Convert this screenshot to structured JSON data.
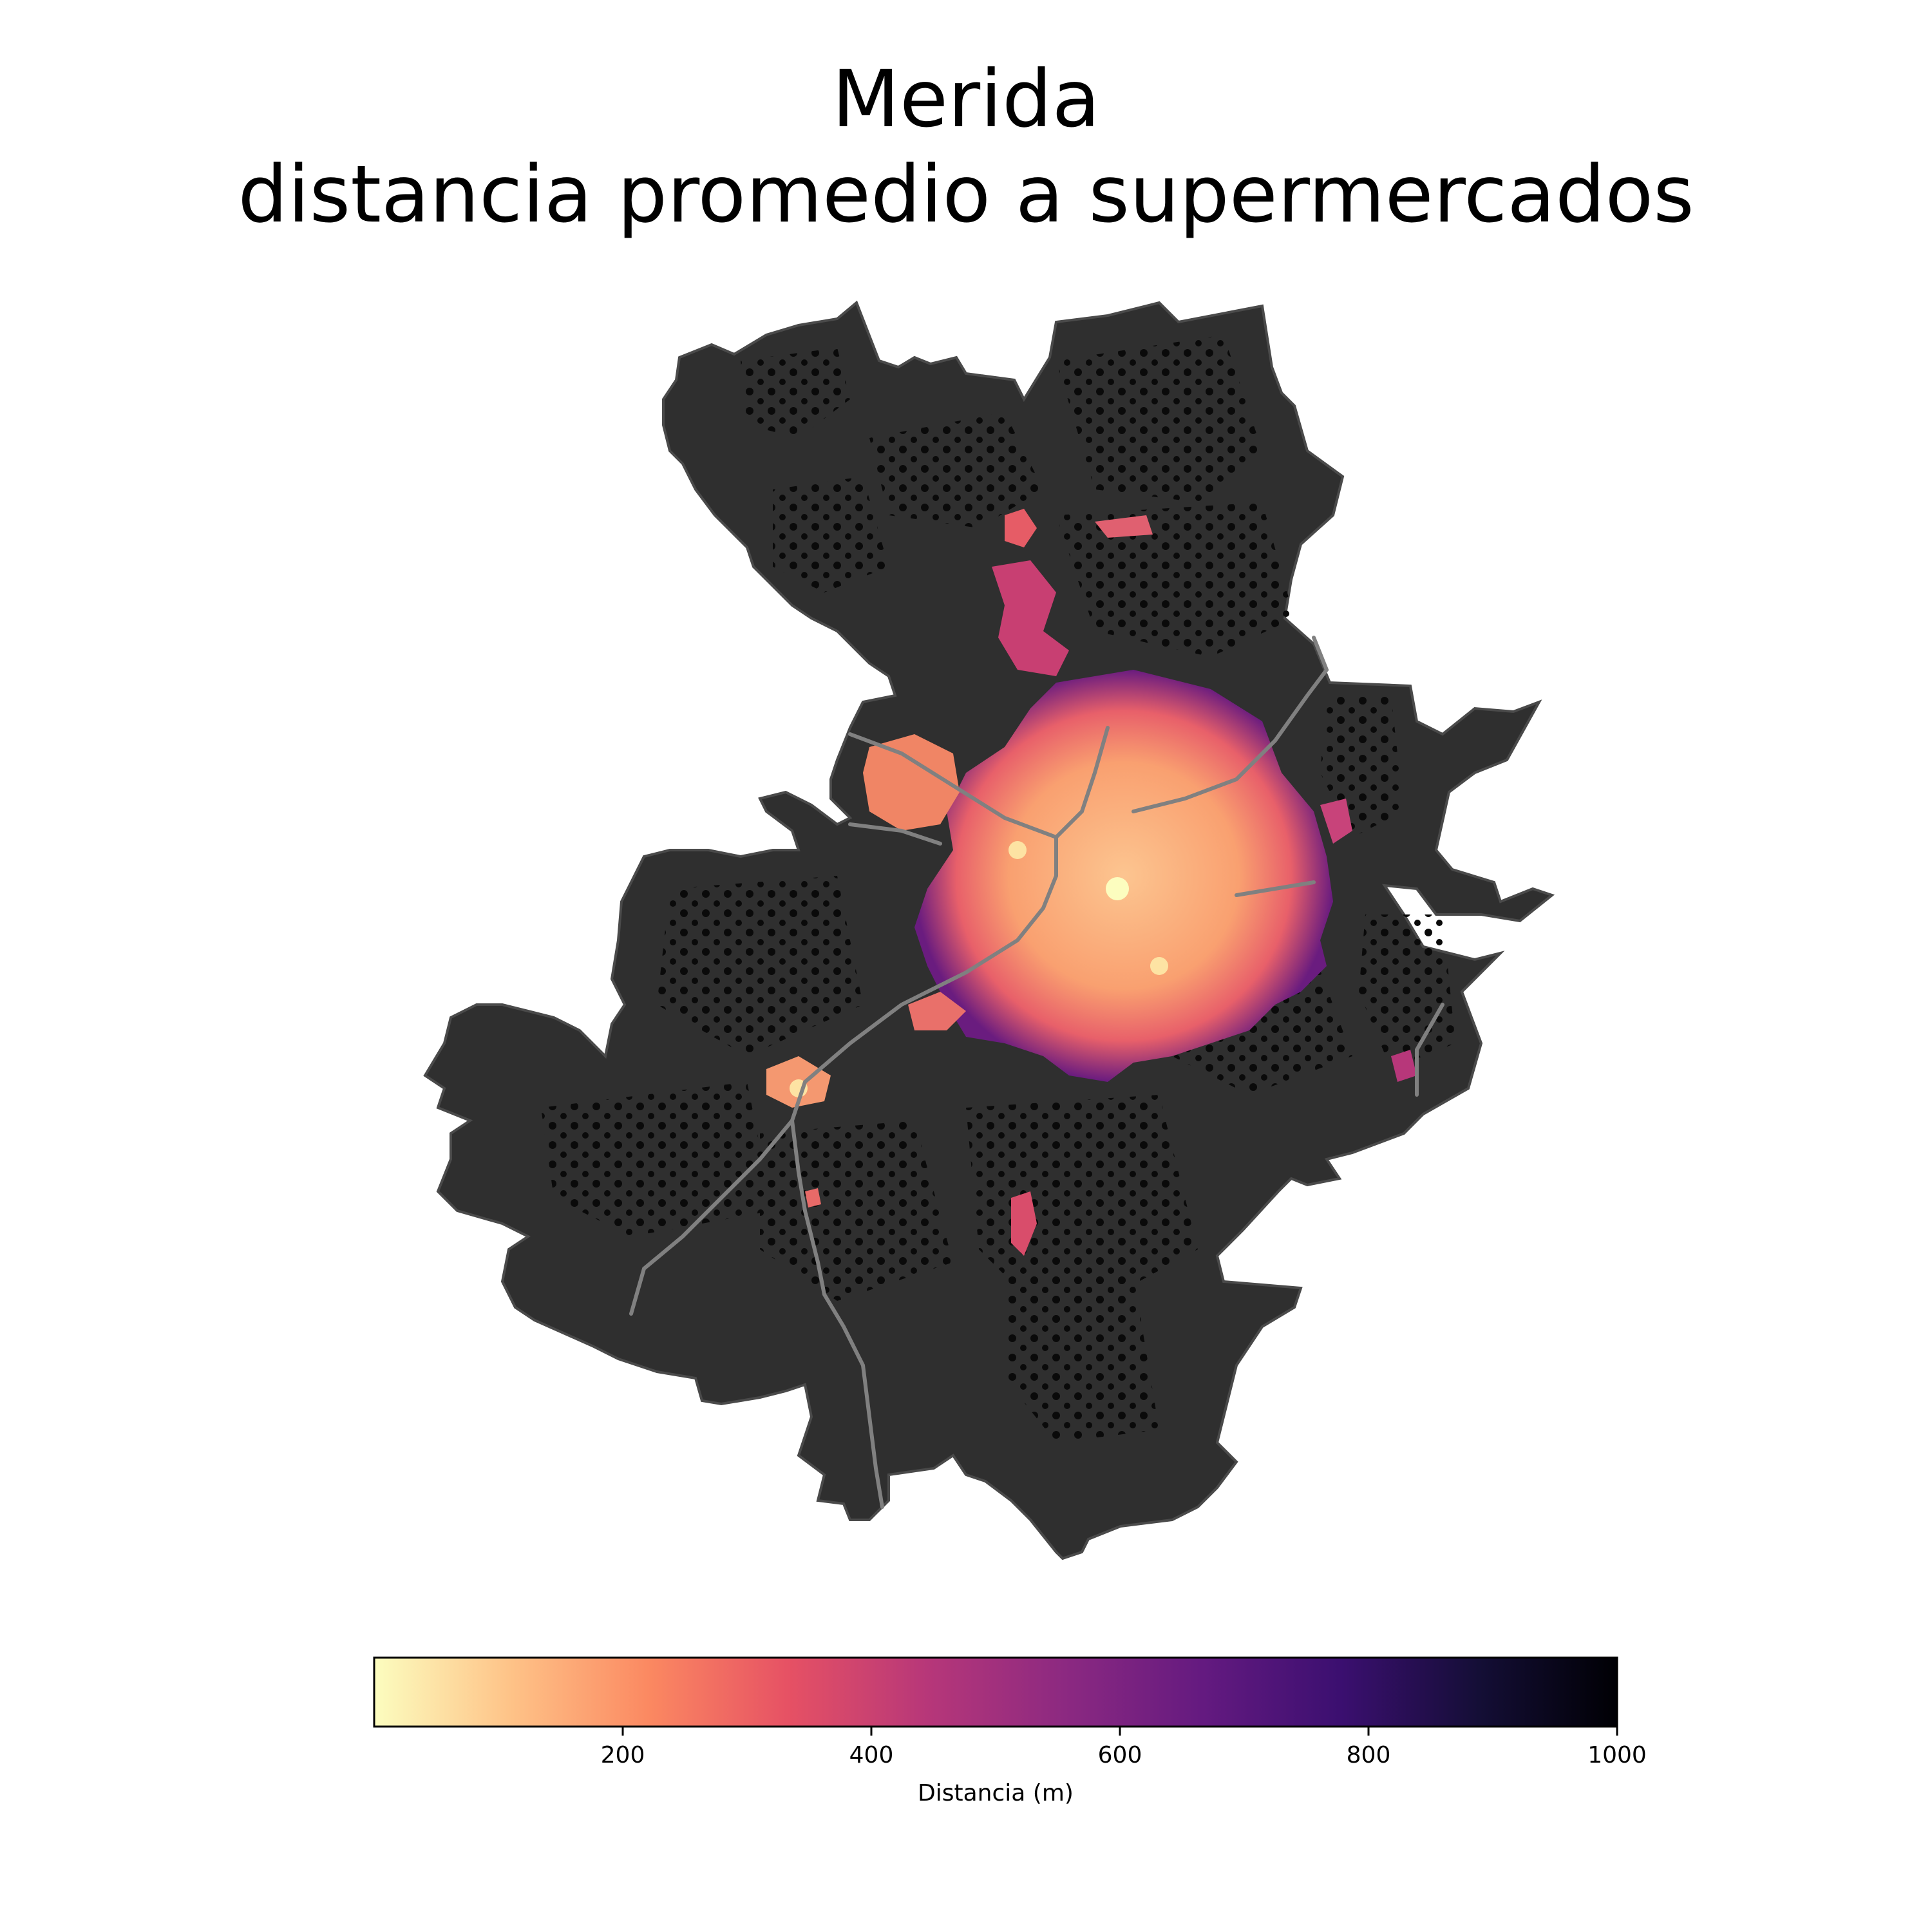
{
  "title": {
    "line1": "Merida",
    "line2": "distancia promedio a supermercados"
  },
  "map": {
    "background_fill": "#2f2f2f",
    "no_data_dark": "#0a0a0a",
    "road_color": "#808080",
    "colormap": "magma_r"
  },
  "colorbar": {
    "label": "Distancia (m)",
    "min": 0,
    "max": 1000,
    "ticks": [
      200,
      400,
      600,
      800,
      1000
    ],
    "tick_labels": [
      "200",
      "400",
      "600",
      "800",
      "1000"
    ],
    "colors": [
      "#fcfdbf",
      "#fec287",
      "#fb8861",
      "#e65164",
      "#b73779",
      "#8c2981",
      "#641a80",
      "#3b0f70",
      "#140e36",
      "#000004"
    ]
  }
}
